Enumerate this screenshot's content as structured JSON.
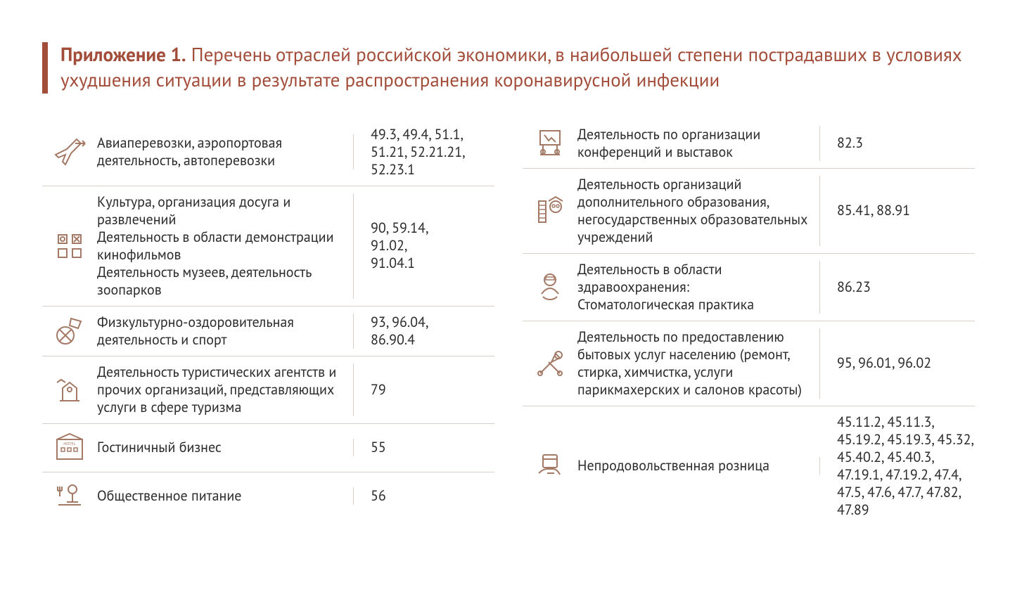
{
  "title": {
    "prefix": "Приложение 1.",
    "rest": " Перечень отраслей российской экономики, в наибольшей степени пострадавших в условиях ухудшения ситуации в результате распространения коронавирусной инфекции"
  },
  "colors": {
    "accent": "#a24d3a",
    "icon": "#a47a66",
    "text": "#2b2b2b",
    "border": "#d8d0c8",
    "bg": "#ffffff"
  },
  "typography": {
    "title_fontsize": 27,
    "body_fontsize": 20,
    "font_family": "PT Sans, Segoe UI, Arial, sans-serif"
  },
  "left_rows": [
    {
      "icon": "plane",
      "desc": "Авиаперевозки, аэропортовая деятельность, автоперевозки",
      "codes": "49.3, 49.4, 51.1, 51.21, 52.21.21, 52.23.1"
    },
    {
      "icon": "culture",
      "desc": "Культура, организация досуга и развлечений\nДеятельность в области демонстрации кинофильмов\nДеятельность музеев, деятельность зоопарков",
      "codes": "90, 59.14,\n91.02,\n91.04.1"
    },
    {
      "icon": "sport",
      "desc": "Физкультурно-оздоровительная деятельность и спорт",
      "codes": "93, 96.04,\n86.90.4"
    },
    {
      "icon": "tourism",
      "desc": "Деятельность туристических агентств и прочих организаций, представляющих услуги в сфере туризма",
      "codes": "79"
    },
    {
      "icon": "hotel",
      "desc": "Гостиничный бизнес",
      "codes": "55"
    },
    {
      "icon": "food",
      "desc": "Общественное питание",
      "codes": "56"
    }
  ],
  "right_rows": [
    {
      "icon": "conf",
      "desc": "Деятельность по организации конференций и выставок",
      "codes": "82.3"
    },
    {
      "icon": "edu",
      "desc": "Деятельность организаций дополнительного образования, негосударственных образовательных учреждений",
      "codes": "85.41, 88.91"
    },
    {
      "icon": "dental",
      "desc": "Деятельность в области здравоохранения:\nСтоматологическая практика",
      "codes": "86.23"
    },
    {
      "icon": "services",
      "desc": "Деятельность по предоставлению бытовых услуг населению (ремонт, стирка, химчистка, услуги парикмахерских и салонов красоты)",
      "codes": "95, 96.01, 96.02"
    },
    {
      "icon": "retail",
      "desc": "Непродовольственная розница",
      "codes": "45.11.2, 45.11.3, 45.19.2, 45.19.3, 45.32, 45.40.2, 45.40.3, 47.19.1, 47.19.2, 47.4, 47.5, 47.6, 47.7, 47.82, 47.89"
    }
  ]
}
